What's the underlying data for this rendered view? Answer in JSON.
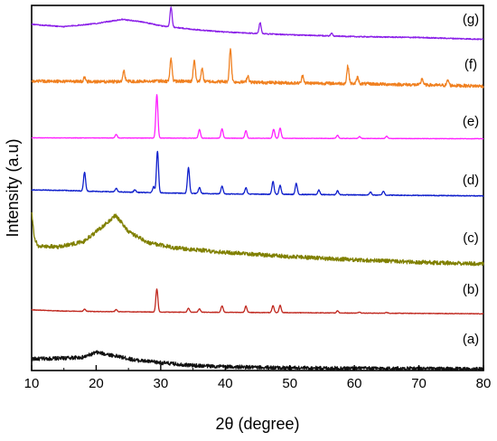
{
  "chart_data": {
    "type": "line",
    "title": "",
    "xlabel": "2θ (degree)",
    "ylabel": "Intensity (a.u)",
    "xlim": [
      10,
      80
    ],
    "xticks": [
      10,
      20,
      30,
      40,
      50,
      60,
      70,
      80
    ],
    "xtick_labels": [
      "10",
      "20",
      "30",
      "40",
      "50",
      "60",
      "70",
      "80"
    ],
    "yticks": false,
    "grid": false,
    "legend": "none",
    "series": [
      {
        "label": "(a)",
        "color": "#111111",
        "noise": 0.35,
        "base": [
          [
            10,
            0.9
          ],
          [
            14,
            0.95
          ],
          [
            18,
            1.05
          ],
          [
            20,
            1.5
          ],
          [
            22,
            1.3
          ],
          [
            26,
            0.8
          ],
          [
            30,
            0.55
          ],
          [
            35,
            0.3
          ],
          [
            40,
            0.18
          ],
          [
            45,
            0.12
          ],
          [
            50,
            0.08
          ],
          [
            55,
            0.05
          ],
          [
            60,
            0.03
          ],
          [
            70,
            0.0
          ],
          [
            80,
            -0.05
          ]
        ],
        "peaks": []
      },
      {
        "label": "(b)",
        "color": "#c0281f",
        "noise": 0.08,
        "base": [
          [
            10,
            0.9
          ],
          [
            12,
            0.82
          ],
          [
            15,
            0.72
          ],
          [
            20,
            0.66
          ],
          [
            25,
            0.62
          ],
          [
            30,
            0.58
          ],
          [
            40,
            0.55
          ],
          [
            50,
            0.5
          ],
          [
            60,
            0.45
          ],
          [
            70,
            0.4
          ],
          [
            80,
            0.35
          ]
        ],
        "peaks": [
          [
            18.2,
            0.3
          ],
          [
            23.1,
            0.28
          ],
          [
            29.4,
            3.2
          ],
          [
            34.3,
            0.55
          ],
          [
            36.0,
            0.5
          ],
          [
            39.5,
            0.9
          ],
          [
            43.2,
            0.85
          ],
          [
            47.4,
            0.95
          ],
          [
            48.5,
            1.0
          ],
          [
            57.4,
            0.3
          ],
          [
            60.8,
            0.15
          ],
          [
            65.0,
            0.12
          ]
        ]
      },
      {
        "label": "(c)",
        "color": "#808000",
        "noise": 0.25,
        "base": [
          [
            10,
            3.2
          ],
          [
            10.4,
            1.6
          ],
          [
            11,
            1.1
          ],
          [
            14,
            1.05
          ],
          [
            18,
            1.35
          ],
          [
            21,
            2.3
          ],
          [
            23,
            3.0
          ],
          [
            25,
            2.0
          ],
          [
            28,
            1.3
          ],
          [
            32,
            1.0
          ],
          [
            40,
            0.7
          ],
          [
            50,
            0.45
          ],
          [
            60,
            0.25
          ],
          [
            70,
            0.1
          ],
          [
            80,
            0.0
          ]
        ],
        "peaks": []
      },
      {
        "label": "(d)",
        "color": "#1020cc",
        "noise": 0.08,
        "base": [
          [
            10,
            1.35
          ],
          [
            15,
            1.3
          ],
          [
            20,
            1.2
          ],
          [
            30,
            1.05
          ],
          [
            40,
            0.95
          ],
          [
            50,
            0.9
          ],
          [
            60,
            0.85
          ],
          [
            70,
            0.8
          ],
          [
            80,
            0.75
          ]
        ],
        "peaks": [
          [
            18.2,
            1.9
          ],
          [
            23.1,
            0.35
          ],
          [
            26.0,
            0.25
          ],
          [
            28.9,
            0.6
          ],
          [
            29.5,
            4.2
          ],
          [
            34.3,
            2.6
          ],
          [
            36.0,
            0.6
          ],
          [
            39.5,
            0.8
          ],
          [
            43.2,
            0.65
          ],
          [
            47.4,
            1.3
          ],
          [
            48.5,
            0.9
          ],
          [
            51.0,
            1.1
          ],
          [
            54.5,
            0.45
          ],
          [
            57.4,
            0.4
          ],
          [
            62.5,
            0.3
          ],
          [
            64.5,
            0.4
          ]
        ]
      },
      {
        "label": "(e)",
        "color": "#ff20ff",
        "noise": 0.05,
        "base": [
          [
            10,
            0.55
          ],
          [
            80,
            0.45
          ]
        ],
        "peaks": [
          [
            23.1,
            0.4
          ],
          [
            29.4,
            4.8
          ],
          [
            36.0,
            0.95
          ],
          [
            39.5,
            1.05
          ],
          [
            43.2,
            0.85
          ],
          [
            47.5,
            1.0
          ],
          [
            48.5,
            1.15
          ],
          [
            57.4,
            0.35
          ],
          [
            60.8,
            0.2
          ],
          [
            65.0,
            0.25
          ]
        ]
      },
      {
        "label": "(f)",
        "color": "#f08020",
        "noise": 0.25,
        "base": [
          [
            10,
            0.45
          ],
          [
            20,
            0.4
          ],
          [
            30,
            0.45
          ],
          [
            40,
            0.4
          ],
          [
            50,
            0.3
          ],
          [
            60,
            0.25
          ],
          [
            70,
            0.15
          ],
          [
            80,
            0.05
          ]
        ],
        "peaks": [
          [
            18.2,
            0.3
          ],
          [
            24.3,
            0.8
          ],
          [
            31.6,
            1.8
          ],
          [
            35.2,
            1.7
          ],
          [
            36.4,
            1.0
          ],
          [
            40.8,
            2.6
          ],
          [
            43.5,
            0.5
          ],
          [
            52.0,
            0.6
          ],
          [
            59.0,
            1.4
          ],
          [
            60.5,
            0.5
          ],
          [
            70.5,
            0.5
          ],
          [
            74.5,
            0.4
          ]
        ]
      },
      {
        "label": "(g)",
        "color": "#8b20e8",
        "noise": 0.12,
        "base": [
          [
            10,
            1.8
          ],
          [
            15,
            1.55
          ],
          [
            20,
            1.9
          ],
          [
            24,
            2.35
          ],
          [
            27,
            2.1
          ],
          [
            30,
            1.65
          ],
          [
            35,
            1.25
          ],
          [
            40,
            0.95
          ],
          [
            45,
            0.8
          ],
          [
            50,
            0.65
          ],
          [
            55,
            0.55
          ],
          [
            60,
            0.45
          ],
          [
            65,
            0.4
          ],
          [
            70,
            0.35
          ],
          [
            75,
            0.25
          ],
          [
            80,
            0.15
          ]
        ],
        "peaks": [
          [
            31.6,
            2.2
          ],
          [
            45.4,
            1.2
          ],
          [
            56.5,
            0.3
          ]
        ]
      }
    ]
  }
}
